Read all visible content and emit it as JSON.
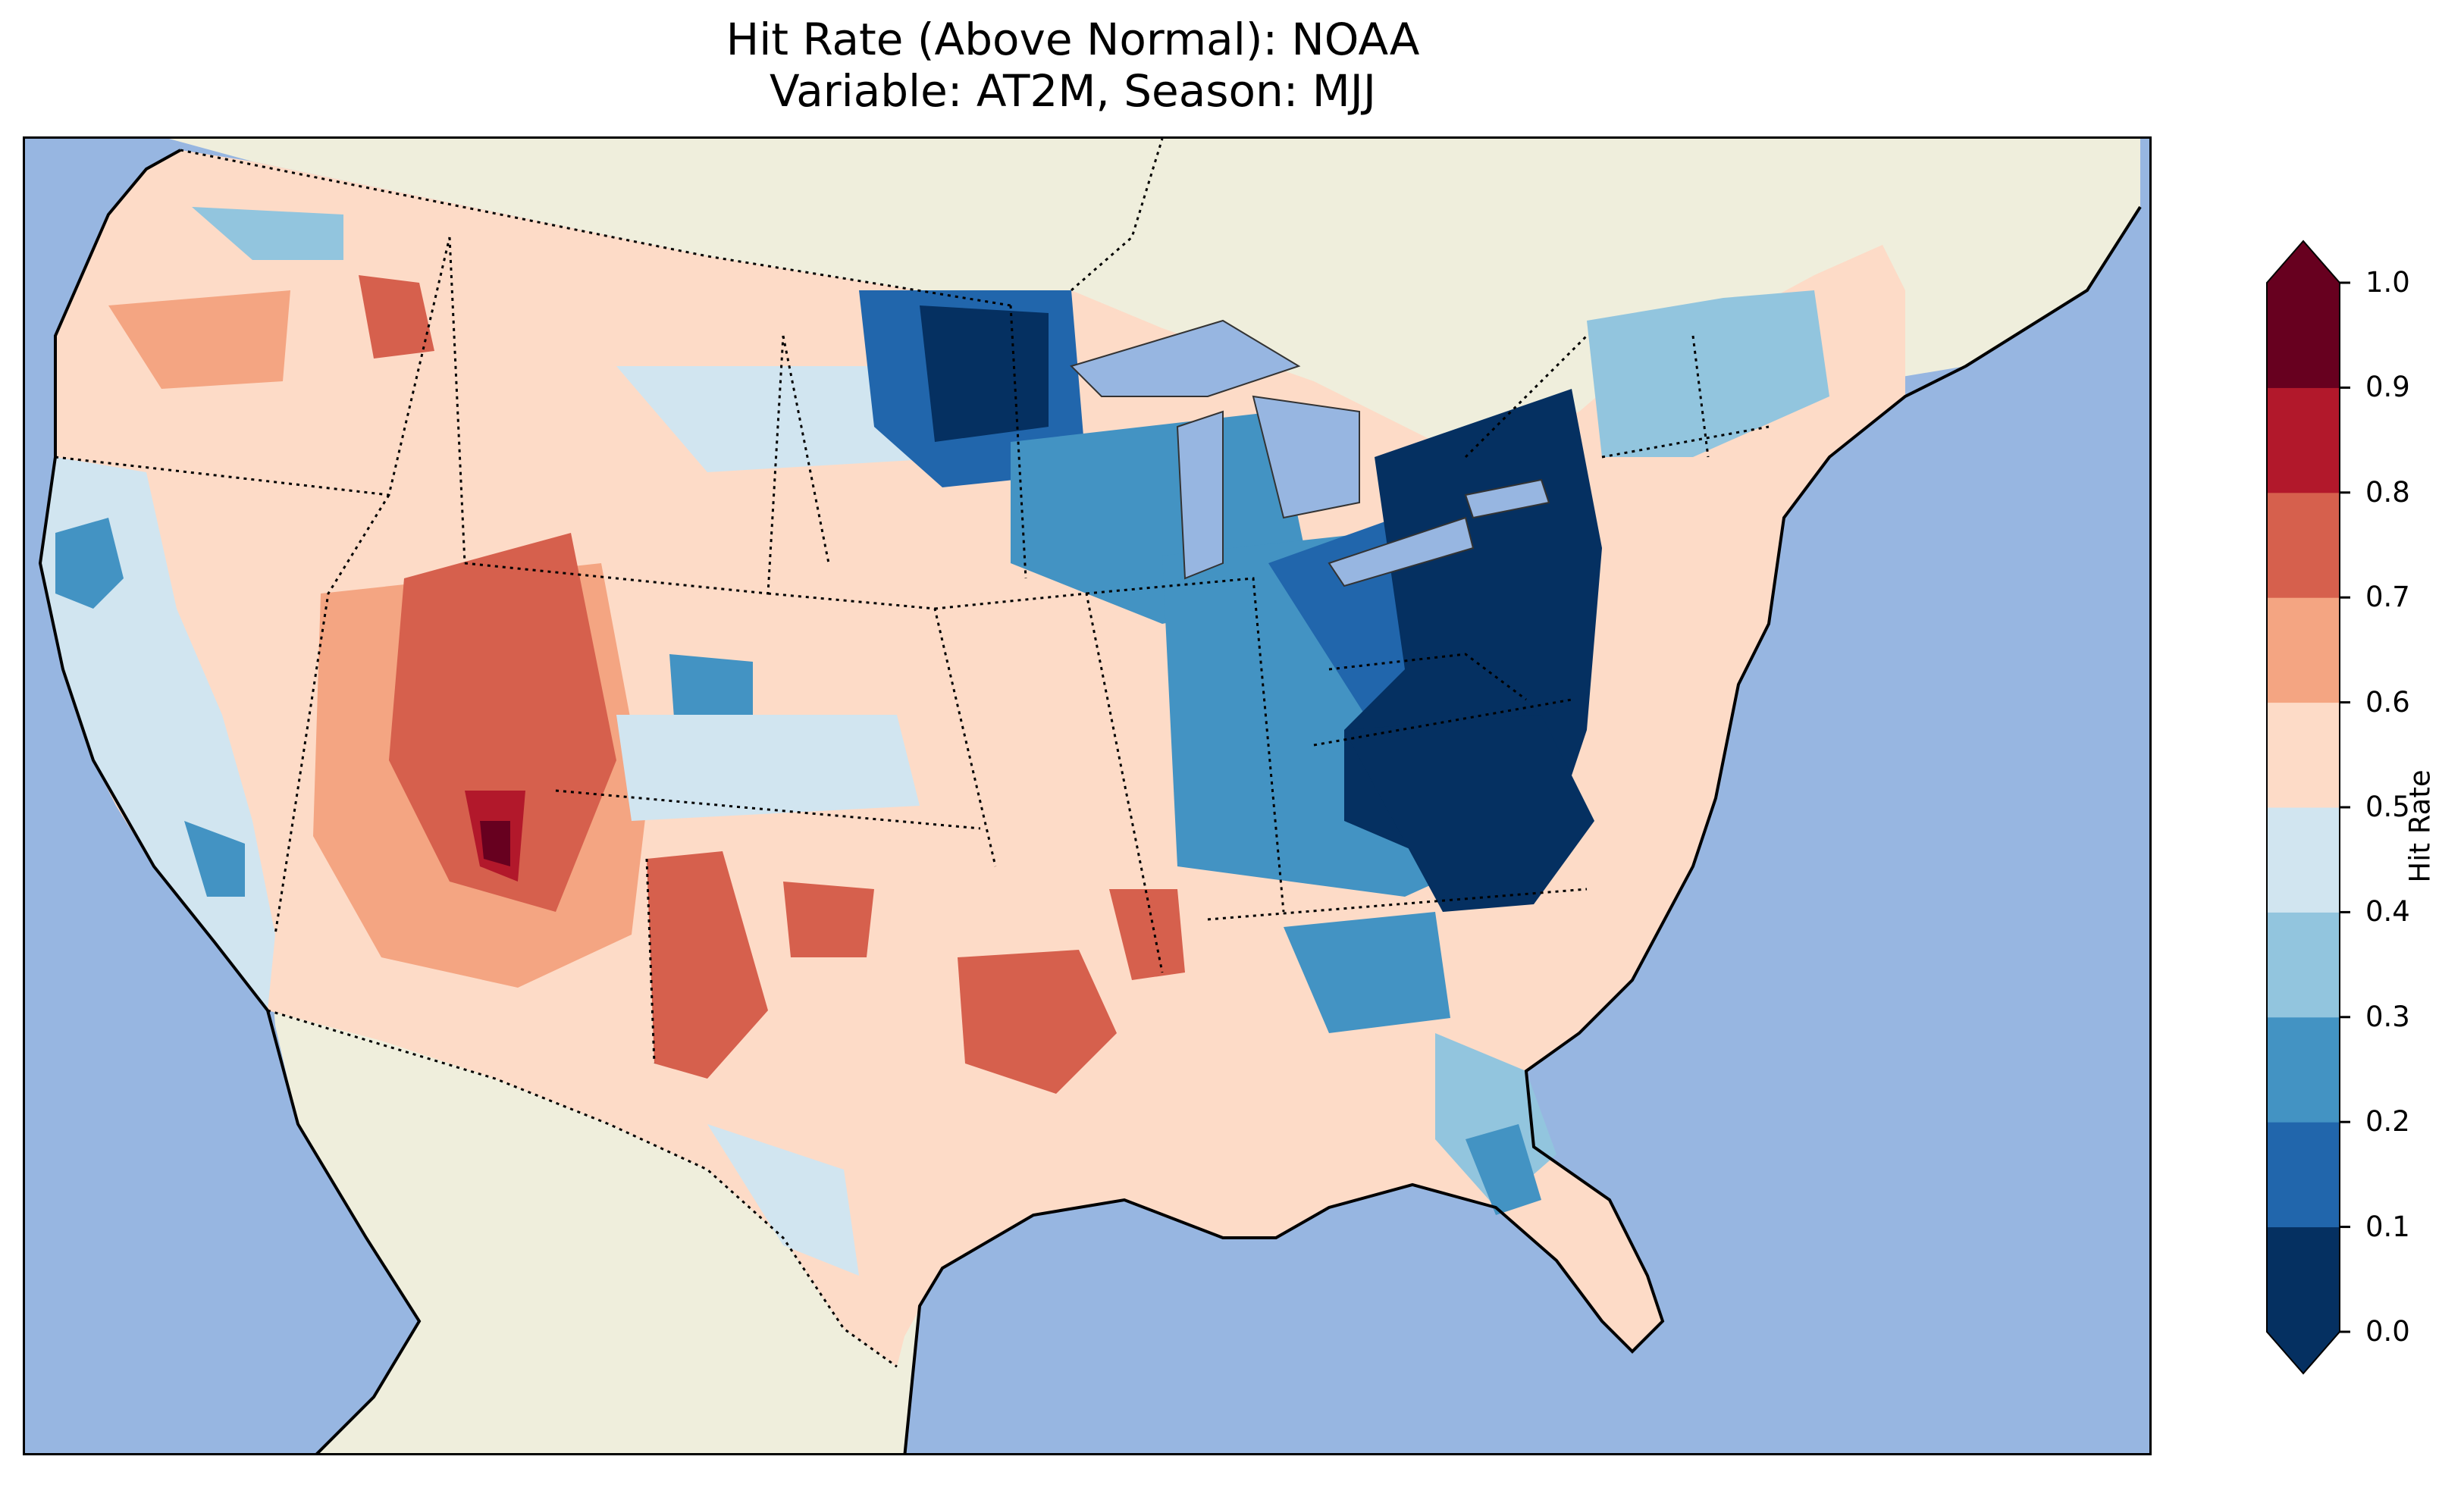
{
  "title": {
    "line1": "Hit Rate (Above Normal): NOAA",
    "line2": "Variable: AT2M, Season: MJJ"
  },
  "colorbar": {
    "label": "Hit Rate",
    "ticks": [
      "0.0",
      "0.1",
      "0.2",
      "0.3",
      "0.4",
      "0.5",
      "0.6",
      "0.7",
      "0.8",
      "0.9",
      "1.0"
    ],
    "bins": [
      {
        "min": 0.0,
        "max": 0.1,
        "color": "#053061"
      },
      {
        "min": 0.1,
        "max": 0.2,
        "color": "#2166ac"
      },
      {
        "min": 0.2,
        "max": 0.3,
        "color": "#4393c3"
      },
      {
        "min": 0.3,
        "max": 0.4,
        "color": "#92c5de"
      },
      {
        "min": 0.4,
        "max": 0.5,
        "color": "#d1e5f0"
      },
      {
        "min": 0.5,
        "max": 0.6,
        "color": "#fddbc7"
      },
      {
        "min": 0.6,
        "max": 0.7,
        "color": "#f4a582"
      },
      {
        "min": 0.7,
        "max": 0.8,
        "color": "#d6604d"
      },
      {
        "min": 0.8,
        "max": 0.9,
        "color": "#b2182b"
      },
      {
        "min": 0.9,
        "max": 1.0,
        "color": "#67001f"
      }
    ],
    "extend": "both"
  },
  "map": {
    "projection": "Lambert Conformal (CONUS)",
    "ocean_color": "#97b6e1",
    "land_color": "#efeedc",
    "lake_color": "#97b6e1"
  }
}
